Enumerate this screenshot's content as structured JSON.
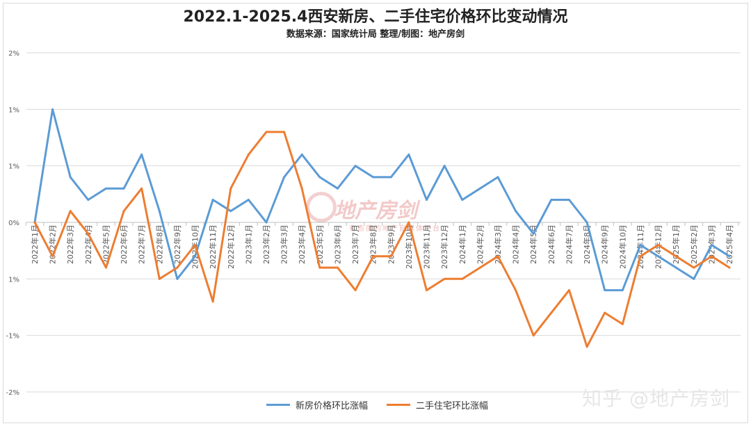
{
  "title": "2022.1-2025.4西安新房、二手住宅价格环比变动情况",
  "subtitle": "数据来源：国家统计局   整理/制图：地产房剑",
  "watermark": "知乎 @地产房剑",
  "center_watermark": {
    "main": "地产房剑",
    "sub": "有态度的地产自媒体平台"
  },
  "colors": {
    "new": "#5b9bd5",
    "second": "#ed7d31",
    "grid": "#d9d9d9"
  },
  "legend": {
    "new": "新房价格环比涨幅",
    "second": "二手住宅环比涨幅"
  },
  "chart_data": {
    "type": "line",
    "title": "2022.1-2025.4西安新房、二手住宅价格环比变动情况",
    "y_tick_labels": [
      "2%",
      "1%",
      "1%",
      "0%",
      "1%",
      "-1%",
      "-2%"
    ],
    "ylim": [
      -1.5,
      1.5
    ],
    "grid": true,
    "legend_position": "bottom",
    "categories": [
      "2022年1月",
      "2022年2月",
      "2022年3月",
      "2022年4月",
      "2022年5月",
      "2022年6月",
      "2022年7月",
      "2022年8月",
      "2022年9月",
      "2022年10月",
      "2022年11月",
      "2022年12月",
      "2023年1月",
      "2023年2月",
      "2023年3月",
      "2023年4月",
      "2023年5月",
      "2023年6月",
      "2023年7月",
      "2023年8月",
      "2023年9月",
      "2023年10月",
      "2023年11月",
      "2023年12月",
      "2024年1月",
      "2024年2月",
      "2024年3月",
      "2024年4月",
      "2024年5月",
      "2024年6月",
      "2024年7月",
      "2024年8月",
      "2024年9月",
      "2024年10月",
      "2024年11月",
      "2024年12月",
      "2025年1月",
      "2025年2月",
      "2025年3月",
      "2025年4月"
    ],
    "series": [
      {
        "name": "新房价格环比涨幅",
        "values": [
          0,
          1.0,
          0.4,
          0.2,
          0.3,
          0.3,
          0.6,
          0.1,
          -0.5,
          -0.3,
          0.2,
          0.1,
          0.2,
          0,
          0.4,
          0.6,
          0.4,
          0.3,
          0.5,
          0.4,
          0.4,
          0.6,
          0.2,
          0.5,
          0.2,
          0.3,
          0.4,
          0.1,
          -0.1,
          0.2,
          0.2,
          0,
          -0.6,
          -0.6,
          -0.2,
          -0.3,
          -0.4,
          -0.5,
          -0.2,
          -0.3
        ]
      },
      {
        "name": "二手住宅环比涨幅",
        "values": [
          0,
          -0.3,
          0.1,
          -0.1,
          -0.4,
          0.1,
          0.3,
          -0.5,
          -0.4,
          -0.2,
          -0.7,
          0.3,
          0.6,
          0.8,
          0.8,
          0.3,
          -0.4,
          -0.4,
          -0.6,
          -0.3,
          -0.3,
          0,
          -0.6,
          -0.5,
          -0.5,
          -0.4,
          -0.3,
          -0.6,
          -1.0,
          -0.8,
          -0.6,
          -1.1,
          -0.8,
          -0.9,
          -0.3,
          -0.2,
          -0.3,
          -0.4,
          -0.3,
          -0.4
        ]
      }
    ]
  }
}
